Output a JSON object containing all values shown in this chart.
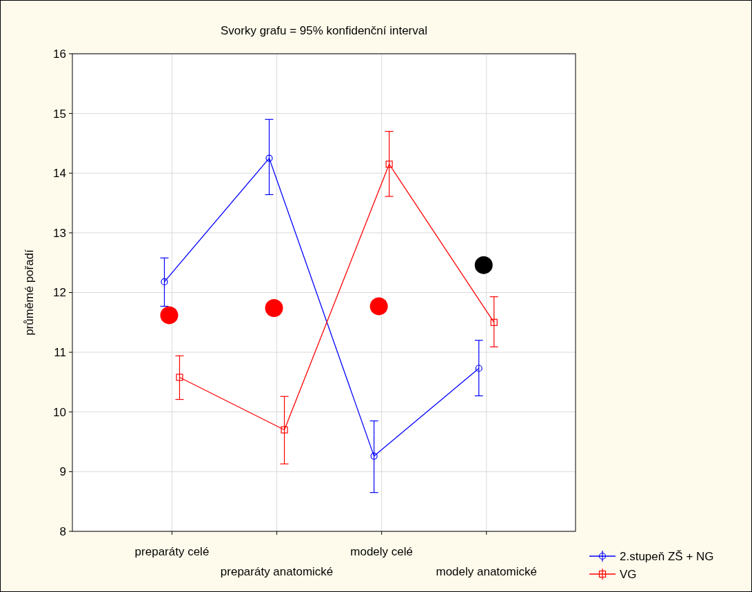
{
  "chart_data": {
    "type": "line",
    "title": "Svorky grafu = 95% konfidenční interval",
    "ylabel": "průměmé pořadí",
    "categories": [
      "preparáty celé",
      "preparáty anatomické",
      "modely celé",
      "modely anatomické"
    ],
    "ylim": [
      8,
      16
    ],
    "yticks": [
      8,
      9,
      10,
      11,
      12,
      13,
      14,
      15,
      16
    ],
    "grid": true,
    "legend": "bottom right",
    "series": [
      {
        "name": "2.stupeň ZŠ + NG",
        "color": "#0000ff",
        "marker": "circle",
        "values": [
          12.18,
          14.25,
          9.26,
          10.73
        ],
        "errors": [
          [
            11.77,
            12.58
          ],
          [
            13.64,
            14.9
          ],
          [
            8.65,
            9.85
          ],
          [
            10.27,
            11.2
          ]
        ]
      },
      {
        "name": "VG",
        "color": "#ff0000",
        "marker": "square",
        "values": [
          10.58,
          9.7,
          14.15,
          11.5
        ],
        "errors": [
          [
            10.21,
            10.94
          ],
          [
            9.13,
            10.26
          ],
          [
            13.61,
            14.7
          ],
          [
            11.09,
            11.93
          ]
        ]
      },
      {
        "type": "scatter",
        "color": "#ff0000",
        "x": [
          "preparáty celé",
          "preparáty anatomické",
          "modely celé",
          null
        ],
        "values": [
          11.62,
          11.74,
          11.77,
          null
        ]
      },
      {
        "type": "scatter",
        "color": "#000000",
        "x": [
          null,
          null,
          null,
          "modely anatomické"
        ],
        "values": [
          null,
          null,
          null,
          12.46
        ]
      }
    ]
  }
}
